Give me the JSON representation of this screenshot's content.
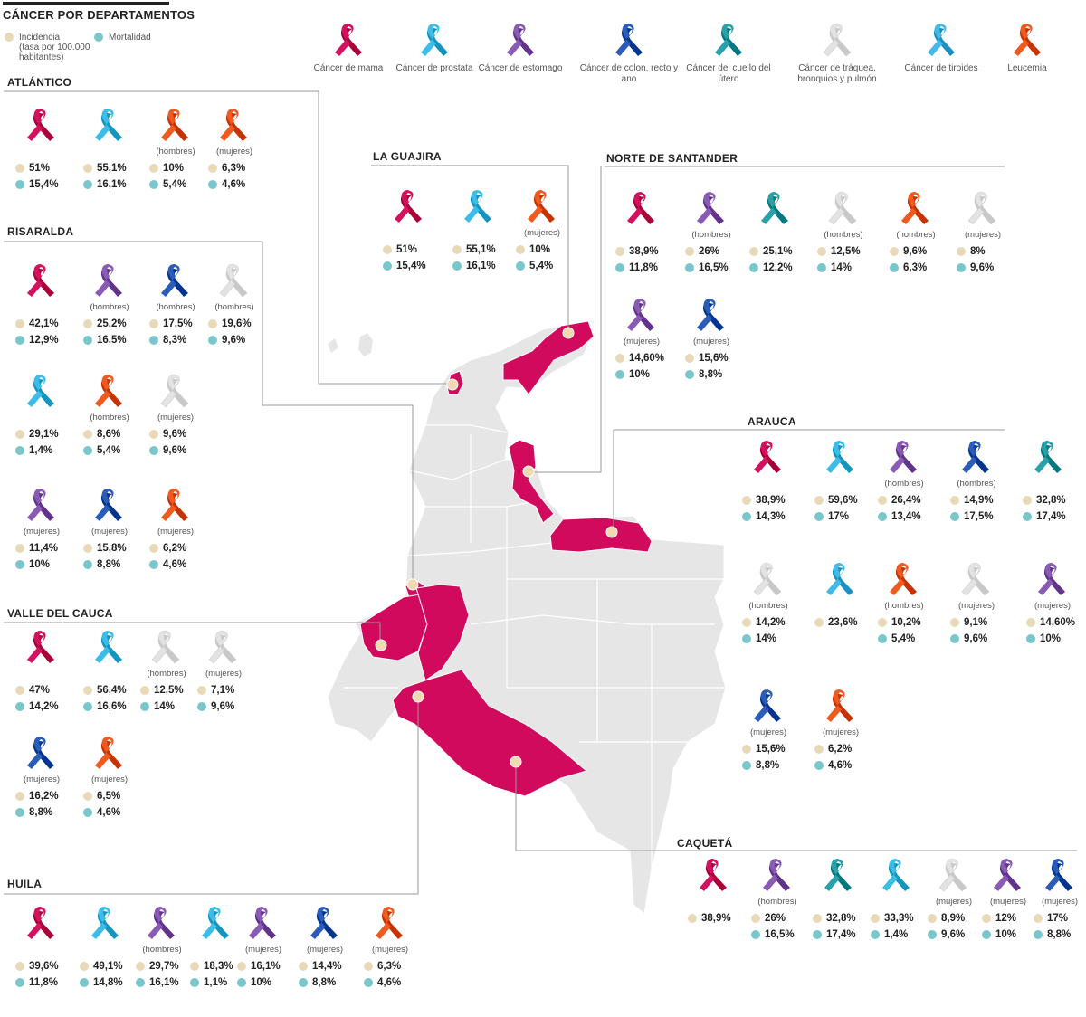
{
  "title": "CÁNCER POR DEPARTAMENTOS",
  "legend": {
    "incidence_label": "Incidencia",
    "incidence_sub": "(tasa por 100.000 habitantes)",
    "mortality_label": "Mortalidad"
  },
  "ribbon_types": [
    {
      "key": "mama",
      "label": "Cáncer de mama",
      "color": "#d3115f"
    },
    {
      "key": "prostata",
      "label": "Cáncer de prostata",
      "color": "#3bbde8"
    },
    {
      "key": "estomago",
      "label": "Cáncer de estomago",
      "color": "#8a5bb5"
    },
    {
      "key": "colon",
      "label": "Cáncer de colon, recto y ano",
      "color": "#2a5cb8"
    },
    {
      "key": "cuello",
      "label": "Cáncer del cuello del útero",
      "color": "#2aa0a8"
    },
    {
      "key": "traquea",
      "label": "Cáncer de tráquea, bronquios y pulmón",
      "color": "#e3e3e3"
    },
    {
      "key": "tiroides",
      "label": "Cáncer de tiroides",
      "color": "#44b8e6"
    },
    {
      "key": "leucemia",
      "label": "Leucemia",
      "color": "#ef5a1f"
    }
  ],
  "departments": [
    {
      "name": "ATLÁNTICO",
      "items": [
        {
          "type": "mama",
          "gender": "",
          "incidence": "51%",
          "mortality": "15,4%"
        },
        {
          "type": "prostata",
          "gender": "",
          "incidence": "55,1%",
          "mortality": "16,1%"
        },
        {
          "type": "leucemia",
          "gender": "(hombres)",
          "incidence": "10%",
          "mortality": "5,4%"
        },
        {
          "type": "leucemia",
          "gender": "(mujeres)",
          "incidence": "6,3%",
          "mortality": "4,6%"
        }
      ]
    },
    {
      "name": "LA GUAJIRA",
      "items": [
        {
          "type": "mama",
          "gender": "",
          "incidence": "51%",
          "mortality": "15,4%"
        },
        {
          "type": "prostata",
          "gender": "",
          "incidence": "55,1%",
          "mortality": "16,1%"
        },
        {
          "type": "leucemia",
          "gender": "(mujeres)",
          "incidence": "10%",
          "mortality": "5,4%"
        }
      ]
    },
    {
      "name": "NORTE DE SANTANDER",
      "items": [
        {
          "type": "mama",
          "gender": "",
          "incidence": "38,9%",
          "mortality": "11,8%"
        },
        {
          "type": "estomago",
          "gender": "(hombres)",
          "incidence": "26%",
          "mortality": "16,5%"
        },
        {
          "type": "cuello",
          "gender": "",
          "incidence": "25,1%",
          "mortality": "12,2%"
        },
        {
          "type": "traquea",
          "gender": "(hombres)",
          "incidence": "12,5%",
          "mortality": "14%"
        },
        {
          "type": "leucemia",
          "gender": "(hombres)",
          "incidence": "9,6%",
          "mortality": "6,3%"
        },
        {
          "type": "traquea",
          "gender": "(mujeres)",
          "incidence": "8%",
          "mortality": "9,6%"
        },
        {
          "type": "estomago",
          "gender": "(mujeres)",
          "incidence": "14,60%",
          "mortality": "10%"
        },
        {
          "type": "colon",
          "gender": "(mujeres)",
          "incidence": "15,6%",
          "mortality": "8,8%"
        }
      ]
    },
    {
      "name": "RISARALDA",
      "items": [
        {
          "type": "mama",
          "gender": "",
          "incidence": "42,1%",
          "mortality": "12,9%"
        },
        {
          "type": "estomago",
          "gender": "(hombres)",
          "incidence": "25,2%",
          "mortality": "16,5%"
        },
        {
          "type": "colon",
          "gender": "(hombres)",
          "incidence": "17,5%",
          "mortality": "8,3%"
        },
        {
          "type": "traquea",
          "gender": "(hombres)",
          "incidence": "19,6%",
          "mortality": "9,6%"
        },
        {
          "type": "prostata",
          "gender": "",
          "incidence": "29,1%",
          "mortality": "1,4%"
        },
        {
          "type": "leucemia",
          "gender": "(hombres)",
          "incidence": "8,6%",
          "mortality": "5,4%"
        },
        {
          "type": "traquea",
          "gender": "(mujeres)",
          "incidence": "9,6%",
          "mortality": "9,6%"
        },
        {
          "type": "estomago",
          "gender": "(mujeres)",
          "incidence": "11,4%",
          "mortality": "10%"
        },
        {
          "type": "colon",
          "gender": "(mujeres)",
          "incidence": "15,8%",
          "mortality": "8,8%"
        },
        {
          "type": "leucemia",
          "gender": "(mujeres)",
          "incidence": "6,2%",
          "mortality": "4,6%"
        }
      ]
    },
    {
      "name": "ARAUCA",
      "items": [
        {
          "type": "mama",
          "gender": "",
          "incidence": "38,9%",
          "mortality": "14,3%"
        },
        {
          "type": "prostata",
          "gender": "",
          "incidence": "59,6%",
          "mortality": "17%"
        },
        {
          "type": "estomago",
          "gender": "(hombres)",
          "incidence": "26,4%",
          "mortality": "13,4%"
        },
        {
          "type": "colon",
          "gender": "(hombres)",
          "incidence": "14,9%",
          "mortality": "17,5%"
        },
        {
          "type": "cuello",
          "gender": "",
          "incidence": "32,8%",
          "mortality": "17,4%"
        },
        {
          "type": "traquea",
          "gender": "(hombres)",
          "incidence": "14,2%",
          "mortality": "14%"
        },
        {
          "type": "tiroides",
          "gender": "",
          "incidence": "23,6%",
          "mortality": ""
        },
        {
          "type": "leucemia",
          "gender": "(hombres)",
          "incidence": "10,2%",
          "mortality": "5,4%"
        },
        {
          "type": "traquea",
          "gender": "(mujeres)",
          "incidence": "9,1%",
          "mortality": "9,6%"
        },
        {
          "type": "estomago",
          "gender": "(mujeres)",
          "incidence": "14,60%",
          "mortality": "10%"
        },
        {
          "type": "colon",
          "gender": "(mujeres)",
          "incidence": "15,6%",
          "mortality": "8,8%"
        },
        {
          "type": "leucemia",
          "gender": "(mujeres)",
          "incidence": "6,2%",
          "mortality": "4,6%"
        }
      ]
    },
    {
      "name": "VALLE DEL CAUCA",
      "items": [
        {
          "type": "mama",
          "gender": "",
          "incidence": "47%",
          "mortality": "14,2%"
        },
        {
          "type": "prostata",
          "gender": "",
          "incidence": "56,4%",
          "mortality": "16,6%"
        },
        {
          "type": "traquea",
          "gender": "(hombres)",
          "incidence": "12,5%",
          "mortality": "14%"
        },
        {
          "type": "traquea",
          "gender": "(mujeres)",
          "incidence": "7,1%",
          "mortality": "9,6%"
        },
        {
          "type": "colon",
          "gender": "(mujeres)",
          "incidence": "16,2%",
          "mortality": "8,8%"
        },
        {
          "type": "leucemia",
          "gender": "(mujeres)",
          "incidence": "6,5%",
          "mortality": "4,6%"
        }
      ]
    },
    {
      "name": "CAQUETÁ",
      "items": [
        {
          "type": "mama",
          "gender": "",
          "incidence": "38,9%",
          "mortality": ""
        },
        {
          "type": "estomago",
          "gender": "(hombres)",
          "incidence": "26%",
          "mortality": "16,5%"
        },
        {
          "type": "cuello",
          "gender": "",
          "incidence": "32,8%",
          "mortality": "17,4%"
        },
        {
          "type": "prostata",
          "gender": "",
          "incidence": "33,3%",
          "mortality": "1,4%"
        },
        {
          "type": "traquea",
          "gender": "(mujeres)",
          "incidence": "8,9%",
          "mortality": "9,6%"
        },
        {
          "type": "estomago",
          "gender": "(mujeres)",
          "incidence": "12%",
          "mortality": "10%"
        },
        {
          "type": "colon",
          "gender": "(mujeres)",
          "incidence": "17%",
          "mortality": "8,8%"
        }
      ]
    },
    {
      "name": "HUILA",
      "items": [
        {
          "type": "mama",
          "gender": "",
          "incidence": "39,6%",
          "mortality": "11,8%"
        },
        {
          "type": "prostata",
          "gender": "",
          "incidence": "49,1%",
          "mortality": "14,8%"
        },
        {
          "type": "estomago",
          "gender": "(hombres)",
          "incidence": "29,7%",
          "mortality": "16,1%"
        },
        {
          "type": "prostata",
          "gender": "",
          "incidence": "18,3%",
          "mortality": "1,1%"
        },
        {
          "type": "estomago",
          "gender": "(mujeres)",
          "incidence": "16,1%",
          "mortality": "10%"
        },
        {
          "type": "colon",
          "gender": "(mujeres)",
          "incidence": "14,4%",
          "mortality": "8,8%"
        },
        {
          "type": "leucemia",
          "gender": "(mujeres)",
          "incidence": "6,3%",
          "mortality": "4,6%"
        }
      ]
    }
  ],
  "colors": {
    "highlight": "#d20a5e",
    "land": "#e6e6e6",
    "border": "#ffffff",
    "marker": "#f1d9b0",
    "incidence": "#e8d9b8",
    "mortality": "#79c7cc"
  }
}
